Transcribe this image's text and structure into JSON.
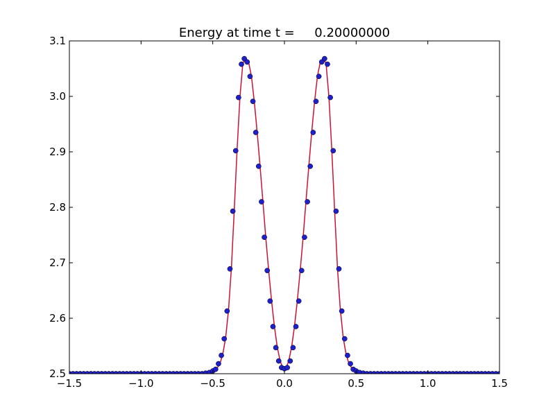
{
  "chart_data": {
    "type": "line",
    "title": "Energy at time t =     0.20000000",
    "xlabel": "",
    "ylabel": "",
    "xlim": [
      -1.5,
      1.5
    ],
    "ylim": [
      2.5,
      3.1
    ],
    "grid": false,
    "x_ticks": [
      "−1.5",
      "−1.0",
      "−0.5",
      "0.0",
      "0.5",
      "1.0",
      "1.5"
    ],
    "y_ticks": [
      "2.5",
      "2.6",
      "2.7",
      "2.8",
      "2.9",
      "3.0",
      "3.1"
    ],
    "series": [
      {
        "style": "line",
        "color": "#cc1133",
        "x": [
          -1.5,
          -0.7,
          -0.6,
          -0.55,
          -0.5,
          -0.47,
          -0.45,
          -0.43,
          -0.41,
          -0.39,
          -0.37,
          -0.35,
          -0.33,
          -0.31,
          -0.29,
          -0.27,
          -0.25,
          -0.23,
          -0.21,
          -0.19,
          -0.17,
          -0.15,
          -0.13,
          -0.11,
          -0.09,
          -0.07,
          -0.05,
          -0.03,
          -0.01,
          0.01,
          0.03,
          0.05,
          0.07,
          0.09,
          0.11,
          0.13,
          0.15,
          0.17,
          0.19,
          0.21,
          0.23,
          0.25,
          0.27,
          0.29,
          0.31,
          0.33,
          0.35,
          0.37,
          0.39,
          0.41,
          0.43,
          0.45,
          0.47,
          0.5,
          0.55,
          0.6,
          0.7,
          1.5
        ],
        "y": [
          2.5,
          2.5,
          2.5,
          2.501,
          2.505,
          2.51,
          2.518,
          2.535,
          2.565,
          2.615,
          2.69,
          2.795,
          2.905,
          3.0,
          3.06,
          3.068,
          3.062,
          3.036,
          2.99,
          2.935,
          2.874,
          2.81,
          2.745,
          2.686,
          2.632,
          2.585,
          2.548,
          2.523,
          2.51,
          2.51,
          2.523,
          2.548,
          2.585,
          2.632,
          2.686,
          2.745,
          2.81,
          2.874,
          2.935,
          2.99,
          3.036,
          3.062,
          3.068,
          3.06,
          3.0,
          2.905,
          2.795,
          2.69,
          2.615,
          2.565,
          2.535,
          2.518,
          2.51,
          2.505,
          2.501,
          2.5,
          2.5,
          2.5
        ]
      },
      {
        "style": "markers",
        "color": "#1f1fcc",
        "x": [
          -1.5,
          -1.475,
          -1.45,
          -1.425,
          -1.4,
          -1.375,
          -1.35,
          -1.325,
          -1.3,
          -1.275,
          -1.25,
          -1.225,
          -1.2,
          -1.175,
          -1.15,
          -1.125,
          -1.1,
          -1.075,
          -1.05,
          -1.025,
          -1.0,
          -0.975,
          -0.95,
          -0.925,
          -0.9,
          -0.875,
          -0.85,
          -0.825,
          -0.8,
          -0.775,
          -0.75,
          -0.725,
          -0.7,
          -0.675,
          -0.65,
          -0.625,
          -0.6,
          -0.575,
          -0.55,
          -0.525,
          -0.5,
          -0.48,
          -0.46,
          -0.44,
          -0.42,
          -0.4,
          -0.38,
          -0.36,
          -0.34,
          -0.32,
          -0.3,
          -0.28,
          -0.26,
          -0.24,
          -0.22,
          -0.2,
          -0.18,
          -0.16,
          -0.14,
          -0.12,
          -0.1,
          -0.08,
          -0.06,
          -0.04,
          -0.02,
          0.0,
          0.02,
          0.04,
          0.06,
          0.08,
          0.1,
          0.12,
          0.14,
          0.16,
          0.18,
          0.2,
          0.22,
          0.24,
          0.26,
          0.28,
          0.3,
          0.32,
          0.34,
          0.36,
          0.38,
          0.4,
          0.42,
          0.44,
          0.46,
          0.48,
          0.5,
          0.525,
          0.55,
          0.575,
          0.6,
          0.625,
          0.65,
          0.675,
          0.7,
          0.725,
          0.75,
          0.775,
          0.8,
          0.825,
          0.85,
          0.875,
          0.9,
          0.925,
          0.95,
          0.975,
          1.0,
          1.025,
          1.05,
          1.075,
          1.1,
          1.125,
          1.15,
          1.175,
          1.2,
          1.225,
          1.25,
          1.275,
          1.3,
          1.325,
          1.35,
          1.375,
          1.4,
          1.425,
          1.45,
          1.475,
          1.5
        ],
        "y": [
          2.5,
          2.5,
          2.5,
          2.5,
          2.5,
          2.5,
          2.5,
          2.5,
          2.5,
          2.5,
          2.5,
          2.5,
          2.5,
          2.5,
          2.5,
          2.5,
          2.5,
          2.5,
          2.5,
          2.5,
          2.5,
          2.5,
          2.5,
          2.5,
          2.5,
          2.5,
          2.5,
          2.5,
          2.5,
          2.5,
          2.5,
          2.5,
          2.5,
          2.5,
          2.5,
          2.5,
          2.5,
          2.5,
          2.501,
          2.502,
          2.505,
          2.508,
          2.518,
          2.533,
          2.563,
          2.613,
          2.689,
          2.793,
          2.902,
          2.998,
          3.058,
          3.068,
          3.062,
          3.036,
          2.991,
          2.935,
          2.874,
          2.81,
          2.746,
          2.686,
          2.631,
          2.585,
          2.547,
          2.523,
          2.511,
          2.509,
          2.511,
          2.523,
          2.547,
          2.585,
          2.631,
          2.686,
          2.746,
          2.81,
          2.874,
          2.935,
          2.991,
          3.036,
          3.062,
          3.068,
          3.058,
          2.998,
          2.902,
          2.793,
          2.689,
          2.613,
          2.563,
          2.533,
          2.518,
          2.508,
          2.505,
          2.502,
          2.501,
          2.5,
          2.5,
          2.5,
          2.5,
          2.5,
          2.5,
          2.5,
          2.5,
          2.5,
          2.5,
          2.5,
          2.5,
          2.5,
          2.5,
          2.5,
          2.5,
          2.5,
          2.5,
          2.5,
          2.5,
          2.5,
          2.5,
          2.5,
          2.5,
          2.5,
          2.5,
          2.5,
          2.5,
          2.5,
          2.5,
          2.5,
          2.5,
          2.5,
          2.5,
          2.5,
          2.5,
          2.5,
          2.5
        ]
      }
    ]
  }
}
